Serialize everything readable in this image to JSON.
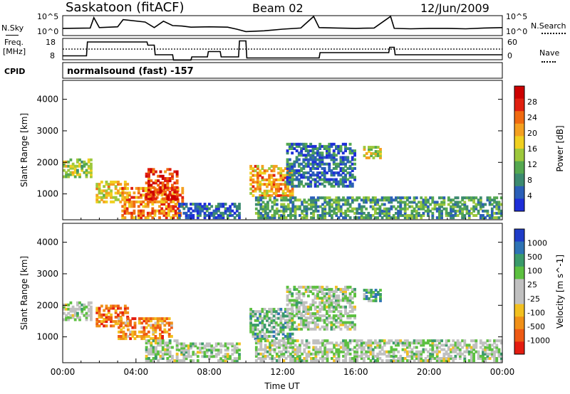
{
  "header": {
    "station": "Saskatoon (fitACF)",
    "beam": "Beam 02",
    "date": "12/Jun/2009"
  },
  "noise_panel": {
    "left_label": "N.Sky",
    "right_label": "N.Search",
    "left_ticks": [
      "10^5",
      "10^0"
    ],
    "right_ticks": [
      "10^5",
      "10^0"
    ]
  },
  "freq_panel": {
    "left_label_1": "Freq.",
    "left_label_2": "[MHz]",
    "left_ticks": [
      "18",
      "8"
    ],
    "right_ticks": [
      "60",
      "0"
    ],
    "right_label": "Nave"
  },
  "cpid_panel": {
    "label": "CPID",
    "text": "normalsound (fast) -157"
  },
  "colors": {
    "power_scale": [
      "#1e2ed8",
      "#2b5fb8",
      "#3c8a70",
      "#55a850",
      "#9dc83c",
      "#f0d020",
      "#f4a020",
      "#f06a10",
      "#e02010",
      "#cc0000"
    ],
    "velocity_scale": [
      "#1f3cc8",
      "#2e73b4",
      "#3a9a6a",
      "#5cc040",
      "#c0c0c0",
      "#c0c0c0",
      "#f2c020",
      "#f09018",
      "#ee5a14",
      "#e41c10"
    ]
  },
  "chart_data": [
    {
      "type": "line",
      "title": "Saskatoon (fitACF)",
      "subtitle": "Beam 02",
      "series": [
        {
          "name": "N.Sky",
          "x": [
            0,
            1.5,
            1.7,
            2,
            3,
            3.3,
            4.5,
            5,
            5.5,
            6,
            6.5,
            7,
            8,
            9,
            9.5,
            10,
            11,
            12,
            13,
            13.7,
            14,
            15,
            16,
            17,
            17.9,
            18.1,
            19,
            20,
            21,
            22,
            23,
            24
          ],
          "values": [
            1.8,
            1.9,
            4.5,
            2.0,
            2.2,
            4.0,
            3.4,
            2.0,
            3.6,
            2.5,
            2.4,
            2.1,
            2.2,
            2.1,
            1.6,
            1.0,
            1.2,
            1.6,
            1.9,
            4.8,
            2.0,
            1.9,
            1.8,
            1.9,
            4.8,
            1.8,
            1.7,
            1.8,
            1.8,
            1.7,
            1.9,
            2.0
          ]
        }
      ]
    },
    {
      "type": "line",
      "series": [
        {
          "name": "Freq. [MHz]",
          "x": [
            0,
            1.3,
            1.35,
            4.6,
            4.65,
            5.0,
            5.05,
            6.0,
            6.05,
            7.0,
            7.05,
            7.9,
            7.95,
            8.6,
            8.65,
            9.6,
            9.65,
            10.0,
            10.05,
            14.0,
            14.05,
            17.8,
            17.85,
            18.1,
            18.15,
            24
          ],
          "values": [
            10.5,
            10.5,
            17.0,
            17.0,
            15.5,
            15.5,
            11.0,
            11.0,
            8.5,
            8.5,
            10.0,
            10.0,
            12.5,
            12.5,
            10.0,
            10.0,
            17.5,
            17.5,
            9.5,
            9.5,
            12.0,
            12.0,
            14.5,
            14.5,
            11.0,
            11.0
          ]
        }
      ]
    },
    {
      "type": "heatmap",
      "xlabel": "Time UT",
      "ylabel": "Slant Range [km]",
      "x_ticks": [
        "00:00",
        "04:00",
        "08:00",
        "12:00",
        "16:00",
        "20:00",
        "00:00"
      ],
      "y_ticks": [
        "1000",
        "2000",
        "3000",
        "4000"
      ],
      "xlim": [
        0,
        24
      ],
      "ylim": [
        180,
        4600
      ],
      "colorbar_label": "Power [dB]",
      "colorbar_ticks": [
        "4",
        "8",
        "12",
        "16",
        "20",
        "24",
        "28"
      ],
      "clim": [
        0,
        30
      ],
      "regions": [
        {
          "t0": 0.0,
          "t1": 1.6,
          "r0": 1500,
          "r1": 2100,
          "level": 0.45
        },
        {
          "t0": 1.8,
          "t1": 3.6,
          "r0": 700,
          "r1": 1400,
          "level": 0.55
        },
        {
          "t0": 3.2,
          "t1": 6.6,
          "r0": 200,
          "r1": 1200,
          "level": 0.7
        },
        {
          "t0": 4.5,
          "t1": 6.3,
          "r0": 800,
          "r1": 1800,
          "level": 0.85
        },
        {
          "t0": 6.3,
          "t1": 9.7,
          "r0": 200,
          "r1": 700,
          "level": 0.15
        },
        {
          "t0": 10.2,
          "t1": 12.6,
          "r0": 900,
          "r1": 1900,
          "level": 0.65
        },
        {
          "t0": 10.5,
          "t1": 24.0,
          "r0": 200,
          "r1": 900,
          "level": 0.3
        },
        {
          "t0": 12.2,
          "t1": 16.0,
          "r0": 1200,
          "r1": 2600,
          "level": 0.2
        },
        {
          "t0": 16.4,
          "t1": 17.4,
          "r0": 2100,
          "r1": 2500,
          "level": 0.5
        }
      ]
    },
    {
      "type": "heatmap",
      "xlabel": "Time UT",
      "ylabel": "Slant Range [km]",
      "x_ticks": [
        "00:00",
        "04:00",
        "08:00",
        "12:00",
        "16:00",
        "20:00",
        "00:00"
      ],
      "y_ticks": [
        "1000",
        "2000",
        "3000",
        "4000"
      ],
      "xlim": [
        0,
        24
      ],
      "ylim": [
        180,
        4600
      ],
      "colorbar_label": "Velocity [m s^-1]",
      "colorbar_ticks": [
        "1000",
        "500",
        "100",
        "25",
        "-25",
        "-100",
        "-500",
        "-1000"
      ],
      "clim": [
        -1000,
        1000
      ],
      "regions": [
        {
          "t0": 0.0,
          "t1": 1.6,
          "r0": 1500,
          "r1": 2100,
          "level": 0.45
        },
        {
          "t0": 1.8,
          "t1": 3.6,
          "r0": 1300,
          "r1": 2000,
          "level": 0.8
        },
        {
          "t0": 3.0,
          "t1": 6.0,
          "r0": 900,
          "r1": 1600,
          "level": 0.75
        },
        {
          "t0": 4.5,
          "t1": 6.3,
          "r0": 200,
          "r1": 900,
          "level": 0.45
        },
        {
          "t0": 6.3,
          "t1": 9.7,
          "r0": 200,
          "r1": 800,
          "level": 0.45
        },
        {
          "t0": 10.2,
          "t1": 12.6,
          "r0": 900,
          "r1": 1900,
          "level": 0.35
        },
        {
          "t0": 10.5,
          "t1": 24.0,
          "r0": 200,
          "r1": 900,
          "level": 0.45
        },
        {
          "t0": 12.2,
          "t1": 16.0,
          "r0": 1200,
          "r1": 2600,
          "level": 0.45
        },
        {
          "t0": 16.4,
          "t1": 17.4,
          "r0": 2100,
          "r1": 2500,
          "level": 0.3
        }
      ]
    }
  ]
}
